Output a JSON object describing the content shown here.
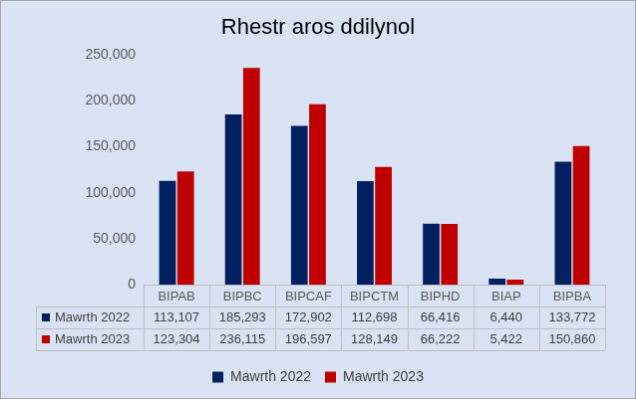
{
  "chart_data": {
    "type": "bar",
    "title": "Rhestr aros ddilynol",
    "categories": [
      "BIPAB",
      "BIPBC",
      "BIPCAF",
      "BIPCTM",
      "BIPHD",
      "BIAP",
      "BIPBA"
    ],
    "series": [
      {
        "name": "Mawrth 2022",
        "color": "#002060",
        "values": [
          113107,
          185293,
          172902,
          112698,
          66416,
          6440,
          133772
        ],
        "value_labels": [
          "113,107",
          "185,293",
          "172,902",
          "112,698",
          "66,416",
          "6,440",
          "133,772"
        ]
      },
      {
        "name": "Mawrth 2023",
        "color": "#c00000",
        "values": [
          123304,
          236115,
          196597,
          128149,
          66222,
          5422,
          150860
        ],
        "value_labels": [
          "123,304",
          "236,115",
          "196,597",
          "128,149",
          "66,222",
          "5,422",
          "150,860"
        ]
      }
    ],
    "ylim": [
      0,
      250000
    ],
    "yticks": [
      0,
      {
        "value": 50000,
        "label": "50,000"
      },
      {
        "value": 100000,
        "label": "100,000"
      },
      {
        "value": 150000,
        "label": "150,000"
      },
      {
        "value": 200000,
        "label": "200,000"
      },
      {
        "value": 250000,
        "label": "250,000"
      }
    ],
    "grid": false,
    "legend": "bottom"
  }
}
